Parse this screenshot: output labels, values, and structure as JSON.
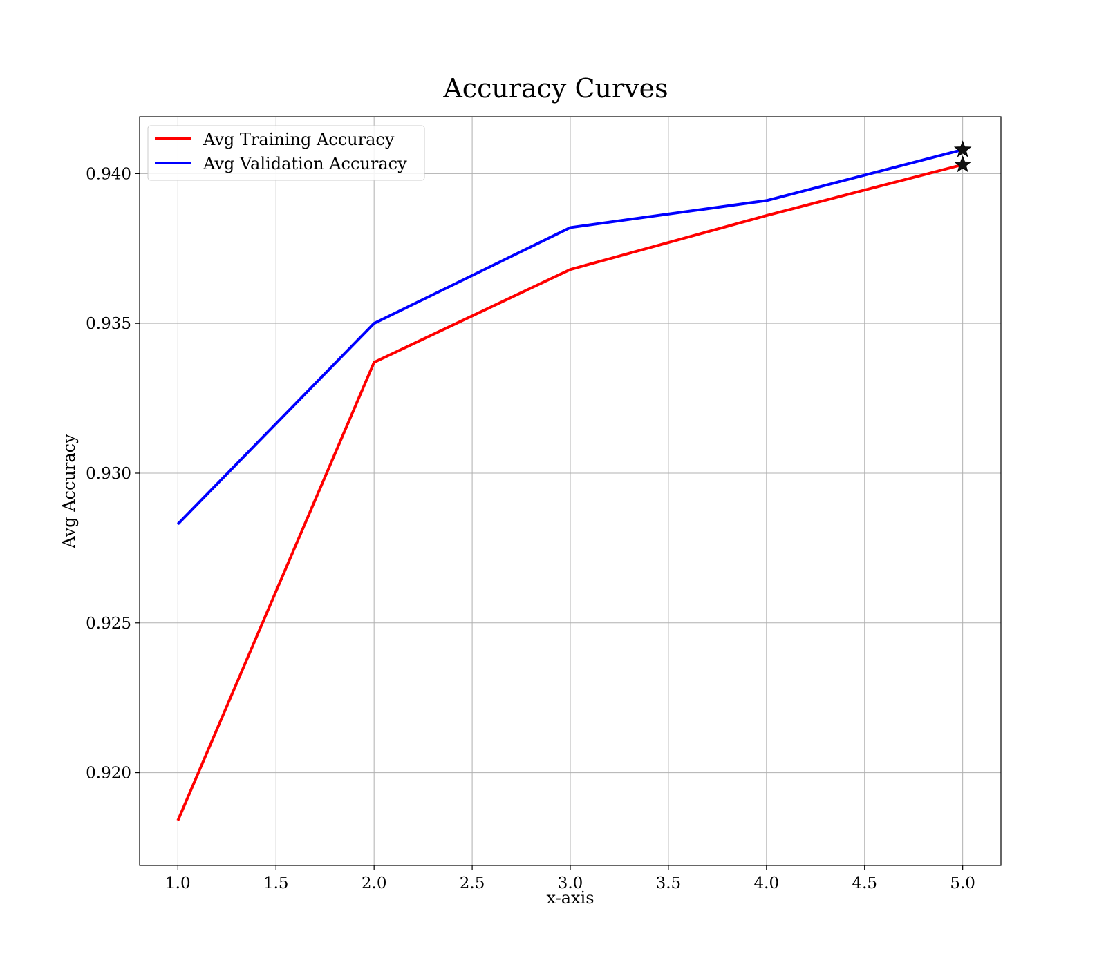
{
  "chart_data": {
    "type": "line",
    "title": "Accuracy Curves",
    "xlabel": "x-axis",
    "ylabel": "Avg Accuracy",
    "x": [
      1,
      2,
      3,
      4,
      5
    ],
    "xlim": [
      0.805,
      5.195
    ],
    "ylim": [
      0.9169,
      0.9419
    ],
    "xticks": [
      1.0,
      1.5,
      2.0,
      2.5,
      3.0,
      3.5,
      4.0,
      4.5,
      5.0
    ],
    "xtick_labels": [
      "1.0",
      "1.5",
      "2.0",
      "2.5",
      "3.0",
      "3.5",
      "4.0",
      "4.5",
      "5.0"
    ],
    "yticks": [
      0.92,
      0.925,
      0.93,
      0.935,
      0.94
    ],
    "ytick_labels": [
      "0.920",
      "0.925",
      "0.930",
      "0.935",
      "0.940"
    ],
    "grid": true,
    "legend_position": "top-left",
    "series": [
      {
        "name": "Avg Training Accuracy",
        "color": "#ff0000",
        "values": [
          0.9184,
          0.9337,
          0.9368,
          0.9386,
          0.9403
        ],
        "marker_last": "star"
      },
      {
        "name": "Avg Validation Accuracy",
        "color": "#0000ff",
        "values": [
          0.9283,
          0.935,
          0.9382,
          0.9391,
          0.9408
        ],
        "marker_last": "star"
      }
    ]
  }
}
